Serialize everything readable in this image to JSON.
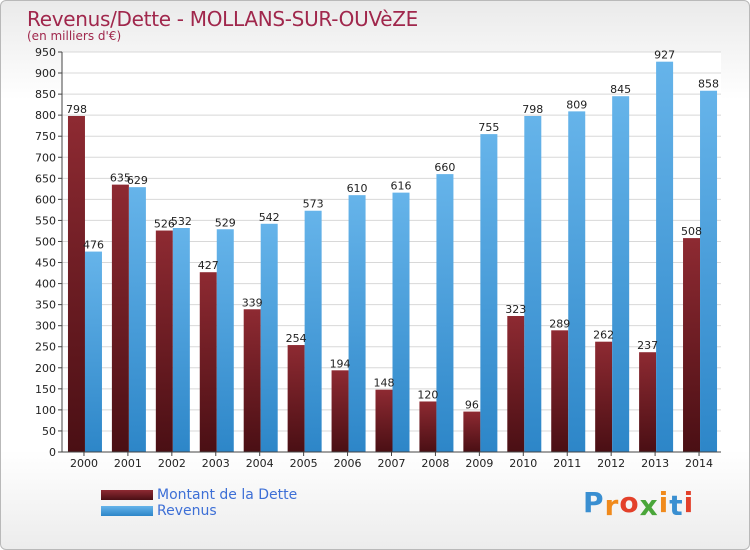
{
  "header": {
    "title": "Revenus/Dette - MOLLANS-SUR-OUVèZE",
    "subtitle": "(en milliers d'€)"
  },
  "chart_data": {
    "type": "bar",
    "categories": [
      "2000",
      "2001",
      "2002",
      "2003",
      "2004",
      "2005",
      "2006",
      "2007",
      "2008",
      "2009",
      "2010",
      "2011",
      "2012",
      "2013",
      "2014"
    ],
    "series": [
      {
        "name": "Montant de la Dette",
        "values": [
          798,
          635,
          526,
          427,
          339,
          254,
          194,
          148,
          120,
          96,
          323,
          289,
          262,
          237,
          508
        ]
      },
      {
        "name": "Revenus",
        "values": [
          476,
          629,
          532,
          529,
          542,
          573,
          610,
          616,
          660,
          755,
          798,
          809,
          845,
          927,
          858
        ]
      }
    ],
    "ylim": [
      0,
      950
    ],
    "ytick_step": 50,
    "grid": true,
    "legend_placement": "bottom-left"
  },
  "legend": {
    "items": [
      {
        "label": "Montant de la Dette"
      },
      {
        "label": "Revenus"
      }
    ]
  },
  "logo": {
    "letters": [
      "P",
      "r",
      "o",
      "x",
      "i",
      "t",
      "i"
    ],
    "colors": [
      "#3a8fd1",
      "#f08a1c",
      "#e3402a",
      "#4aa63a",
      "#f08a1c",
      "#3a8fd1",
      "#e3402a"
    ]
  },
  "colors": {
    "debt": "#7a1f27",
    "revenue": "#4aa3e3",
    "title": "#a0274c",
    "legend_text": "#3d6fd6"
  }
}
